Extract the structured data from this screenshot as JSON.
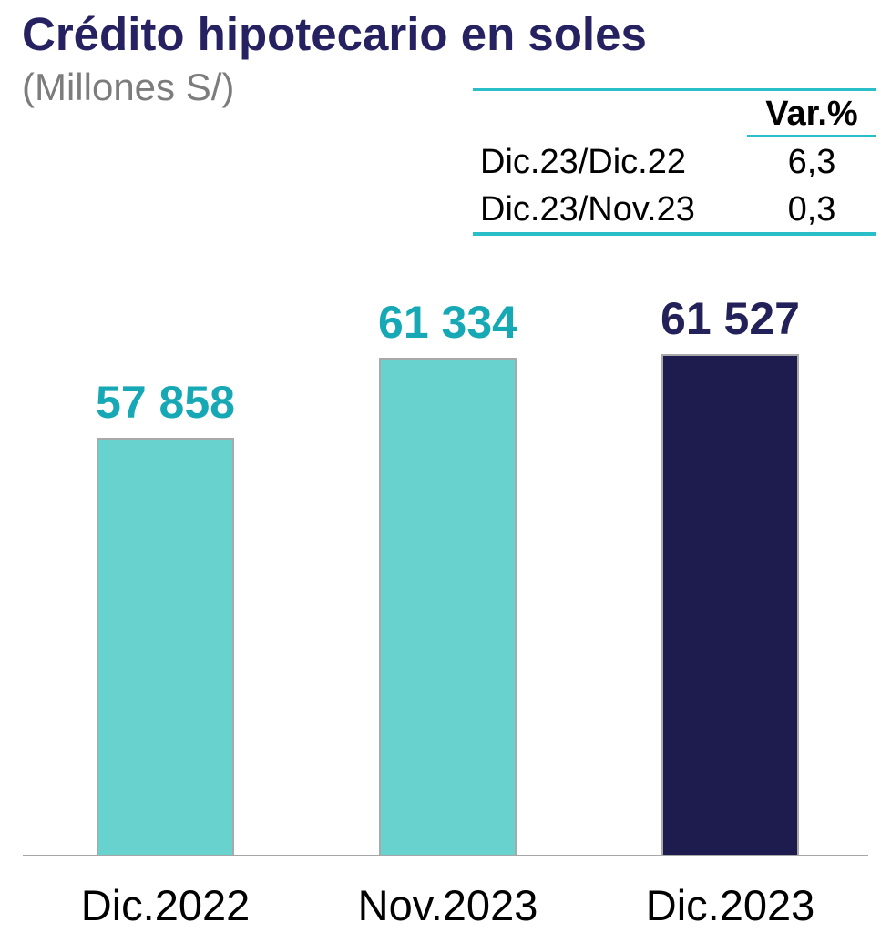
{
  "chart_data": {
    "type": "bar",
    "title": "Crédito hipotecario en soles",
    "subtitle": "(Millones S/)",
    "categories": [
      "Dic.2022",
      "Nov.2023",
      "Dic.2023"
    ],
    "values": [
      57858,
      61334,
      61527
    ],
    "value_labels": [
      "57 858",
      "61 334",
      "61 527"
    ],
    "ylim": [
      39600,
      64300
    ],
    "grid": false,
    "legend": "none",
    "bar_colors": [
      "#68d2ce",
      "#68d2ce",
      "#1e1b4e"
    ],
    "value_label_colors": [
      "#16a9b5",
      "#16a9b5",
      "#23215a"
    ],
    "variation_table": {
      "header": "Var.%",
      "rows": [
        {
          "label": "Dic.23/Dic.22",
          "value": "6,3"
        },
        {
          "label": "Dic.23/Nov.23",
          "value": "0,3"
        }
      ]
    }
  },
  "colors": {
    "title_text": "#262262",
    "subtitle_text": "#7c7c7c",
    "teal_rule": "#2abec8",
    "teal_bar": "#68d2ce",
    "navy_bar": "#1e1b4e",
    "teal_value_text": "#16a9b5",
    "navy_value_text": "#23215a",
    "bar_border": "#a9a9a9",
    "axis_line": "#a6a6a6",
    "category_text": "#000000"
  }
}
